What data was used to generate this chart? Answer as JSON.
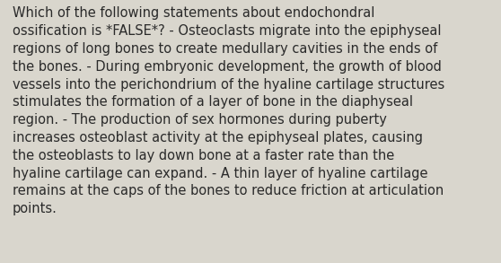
{
  "text": "Which of the following statements about endochondral ossification is *FALSE*? - Osteoclasts migrate into the epiphyseal regions of long bones to create medullary cavities in the ends of the bones. - During embryonic development, the growth of blood vessels into the perichondrium of the hyaline cartilage structures stimulates the formation of a layer of bone in the diaphyseal region. - The production of sex hormones during puberty increases osteoblast activity at the epiphyseal plates, causing the osteoblasts to lay down bone at a faster rate than the hyaline cartilage can expand. - A thin layer of hyaline cartilage remains at the caps of the bones to reduce friction at articulation points.",
  "wrapped_text": "Which of the following statements about endochondral\nossification is *FALSE*? - Osteoclasts migrate into the epiphyseal\nregions of long bones to create medullary cavities in the ends of\nthe bones. - During embryonic development, the growth of blood\nvessels into the perichondrium of the hyaline cartilage structures\nstimulates the formation of a layer of bone in the diaphyseal\nregion. - The production of sex hormones during puberty\nincreases osteoblast activity at the epiphyseal plates, causing\nthe osteoblasts to lay down bone at a faster rate than the\nhyaline cartilage can expand. - A thin layer of hyaline cartilage\nremains at the caps of the bones to reduce friction at articulation\npoints.",
  "background_color": "#d9d6cd",
  "text_color": "#2a2a2a",
  "font_size": 10.5,
  "font_family": "DejaVu Sans",
  "figwidth": 5.58,
  "figheight": 2.93,
  "dpi": 100
}
